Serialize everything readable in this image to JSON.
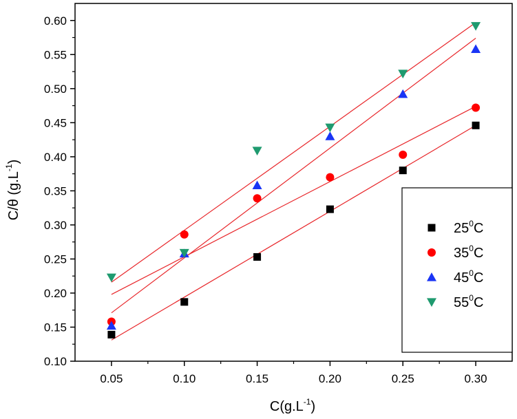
{
  "chart_data": {
    "type": "scatter",
    "xlabel": "C(g.L",
    "xlabel_sup": "-1",
    "xlabel_end": ")",
    "ylabel": "C/θ (g.L",
    "ylabel_sup": "-1",
    "ylabel_end": ")",
    "xlim": [
      0.025,
      0.325
    ],
    "ylim": [
      0.1,
      0.625
    ],
    "xticks": [
      "0.05",
      "0.10",
      "0.15",
      "0.20",
      "0.25",
      "0.30"
    ],
    "yticks": [
      "0.10",
      "0.15",
      "0.20",
      "0.25",
      "0.30",
      "0.35",
      "0.40",
      "0.45",
      "0.50",
      "0.55",
      "0.60"
    ],
    "legend_position": "right",
    "fit_color": "#e8262a",
    "series": [
      {
        "name": "25",
        "name_sup": "0",
        "name_end": "C",
        "marker": "square",
        "color": "#000000",
        "x": [
          0.05,
          0.1,
          0.15,
          0.2,
          0.25,
          0.3
        ],
        "y": [
          0.139,
          0.187,
          0.253,
          0.323,
          0.38,
          0.446
        ],
        "fit": [
          [
            0.05,
            0.131
          ],
          [
            0.3,
            0.446
          ]
        ]
      },
      {
        "name": "35",
        "name_sup": "0",
        "name_end": "C",
        "marker": "circle",
        "color": "#ff0000",
        "x": [
          0.05,
          0.1,
          0.15,
          0.2,
          0.25,
          0.3
        ],
        "y": [
          0.158,
          0.286,
          0.339,
          0.37,
          0.403,
          0.472
        ],
        "fit": [
          [
            0.05,
            0.198
          ],
          [
            0.3,
            0.474
          ]
        ]
      },
      {
        "name": "45",
        "name_sup": "0",
        "name_end": "C",
        "marker": "triangle-up",
        "color": "#1a35f5",
        "x": [
          0.05,
          0.1,
          0.15,
          0.2,
          0.25,
          0.3
        ],
        "y": [
          0.152,
          0.258,
          0.358,
          0.43,
          0.492,
          0.558
        ],
        "fit": [
          [
            0.05,
            0.171
          ],
          [
            0.3,
            0.574
          ]
        ]
      },
      {
        "name": "55",
        "name_sup": "0",
        "name_end": "C",
        "marker": "triangle-down",
        "color": "#1f9a6f",
        "x": [
          0.05,
          0.1,
          0.15,
          0.2,
          0.25,
          0.3
        ],
        "y": [
          0.223,
          0.259,
          0.409,
          0.443,
          0.522,
          0.592
        ],
        "fit": [
          [
            0.05,
            0.216
          ],
          [
            0.3,
            0.597
          ]
        ]
      }
    ]
  }
}
